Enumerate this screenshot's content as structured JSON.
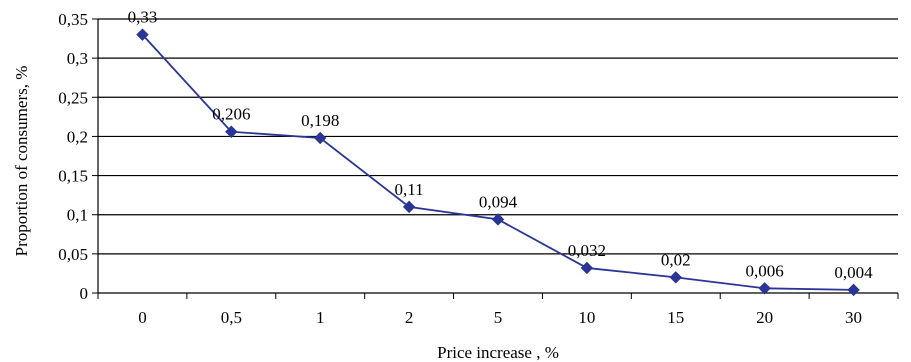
{
  "chart_data": {
    "type": "line",
    "title": "",
    "xlabel": "Price increase , %",
    "ylabel": "Proportion of consumers, %",
    "categories": [
      "0",
      "0,5",
      "1",
      "2",
      "5",
      "10",
      "15",
      "20",
      "30"
    ],
    "series": [
      {
        "values": [
          0.33,
          0.206,
          0.198,
          0.11,
          0.094,
          0.032,
          0.02,
          0.006,
          0.004
        ],
        "data_labels": [
          "0,33",
          "0,206",
          "0,198",
          "0,11",
          "0,094",
          "0,032",
          "0,02",
          "0,006",
          "0,004"
        ],
        "color": "#2b3595",
        "marker": "diamond"
      }
    ],
    "ylim": [
      0,
      0.35
    ],
    "yticks": [
      0,
      0.05,
      0.1,
      0.15,
      0.2,
      0.25,
      0.3,
      0.35
    ],
    "ytick_labels": [
      "0",
      "0,05",
      "0,1",
      "0,15",
      "0,2",
      "0,25",
      "0,3",
      "0,35"
    ],
    "grid": true,
    "legend": "none"
  }
}
